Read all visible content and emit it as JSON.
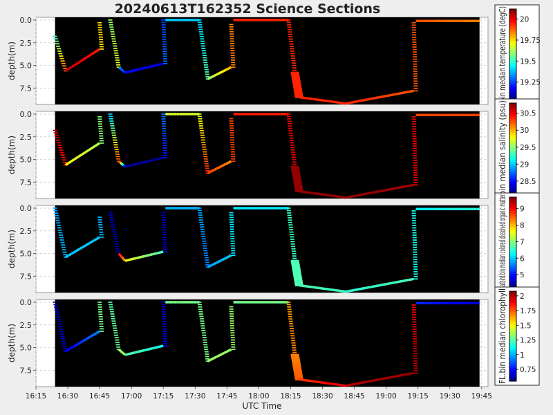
{
  "title": "20240613T162352 Science Sections",
  "xlabel": "UTC Time",
  "chart_data": [
    {
      "type": "heatmap",
      "ylabel": "depth(m)",
      "colorbar_label": "bin median temperature (degC)",
      "colorbar_ticks": [
        19.25,
        19.5,
        19.75,
        20.0
      ],
      "colorbar_range": [
        19.05,
        20.12
      ],
      "ylim": [
        9.3,
        -0.3
      ],
      "yticks": [
        0.0,
        2.5,
        5.0,
        7.5
      ],
      "xlim": [
        "16:15",
        "19:48"
      ],
      "xticks": [
        "16:15",
        "16:30",
        "16:45",
        "17:00",
        "17:15",
        "17:30",
        "17:45",
        "18:00",
        "18:15",
        "18:30",
        "18:45",
        "19:00",
        "19:15",
        "19:30",
        "19:45"
      ],
      "data_window": [
        "16:24",
        "19:44"
      ],
      "profiles": [
        {
          "t0": "16:24",
          "t1": "16:29",
          "d0": 1.8,
          "d1": 5.6,
          "v0": 19.5,
          "v1": 19.9,
          "style": "dash"
        },
        {
          "t0": "16:29",
          "t1": "16:45",
          "d0": 5.6,
          "d1": 3.2,
          "v0": 20.05,
          "v1": 19.95,
          "style": "solid"
        },
        {
          "t0": "16:45",
          "t1": "16:46",
          "d0": 0.3,
          "d1": 3.2,
          "v0": 19.75,
          "v1": 19.75,
          "style": "dash"
        },
        {
          "t0": "16:50",
          "t1": "16:54",
          "d0": 0.0,
          "d1": 5.2,
          "v0": 19.6,
          "v1": 19.7,
          "style": "dash"
        },
        {
          "t0": "16:54",
          "t1": "16:57",
          "d0": 5.2,
          "d1": 5.8,
          "v0": 19.35,
          "v1": 19.2,
          "style": "solid"
        },
        {
          "t0": "16:57",
          "t1": "17:15",
          "d0": 5.8,
          "d1": 4.8,
          "v0": 19.2,
          "v1": 19.15,
          "style": "solid"
        },
        {
          "t0": "17:15",
          "t1": "17:16",
          "d0": 0.0,
          "d1": 4.8,
          "v0": 19.25,
          "v1": 19.3,
          "style": "dash"
        },
        {
          "t0": "17:16",
          "t1": "17:32",
          "d0": 0.0,
          "d1": 0.0,
          "v0": 19.4,
          "v1": 19.4,
          "style": "solid"
        },
        {
          "t0": "17:32",
          "t1": "17:36",
          "d0": 0.0,
          "d1": 6.5,
          "v0": 19.4,
          "v1": 19.55,
          "style": "dash"
        },
        {
          "t0": "17:36",
          "t1": "17:47",
          "d0": 6.5,
          "d1": 5.2,
          "v0": 19.6,
          "v1": 19.8,
          "style": "solid"
        },
        {
          "t0": "17:47",
          "t1": "17:48",
          "d0": 0.5,
          "d1": 5.2,
          "v0": 19.85,
          "v1": 19.85,
          "style": "dash"
        },
        {
          "t0": "17:48",
          "t1": "18:14",
          "d0": 0.0,
          "d1": 0.0,
          "v0": 19.95,
          "v1": 19.95,
          "style": "solid"
        },
        {
          "t0": "18:14",
          "t1": "18:17",
          "d0": 0.0,
          "d1": 5.8,
          "v0": 19.95,
          "v1": 19.95,
          "style": "dash"
        },
        {
          "t0": "18:17",
          "t1": "18:19",
          "d0": 5.8,
          "d1": 8.5,
          "v0": 19.95,
          "v1": 19.95,
          "style": "wide"
        },
        {
          "t0": "18:19",
          "t1": "18:41",
          "d0": 8.5,
          "d1": 9.2,
          "v0": 19.95,
          "v1": 19.95,
          "style": "solid"
        },
        {
          "t0": "18:41",
          "t1": "19:13",
          "d0": 9.2,
          "d1": 7.8,
          "v0": 19.95,
          "v1": 19.9,
          "style": "solid"
        },
        {
          "t0": "19:13",
          "t1": "19:14",
          "d0": 0.3,
          "d1": 7.8,
          "v0": 19.9,
          "v1": 19.9,
          "style": "dash"
        },
        {
          "t0": "19:14",
          "t1": "19:44",
          "d0": 0.1,
          "d1": 0.1,
          "v0": 19.9,
          "v1": 19.85,
          "style": "solid"
        }
      ]
    },
    {
      "type": "heatmap",
      "ylabel": "depth(m)",
      "colorbar_label": "bin median salinity (psu)",
      "colorbar_ticks": [
        28.5,
        29.0,
        29.5,
        30.0,
        30.5
      ],
      "colorbar_range": [
        28.15,
        30.8
      ],
      "ylim": [
        9.3,
        -0.3
      ],
      "yticks": [
        0.0,
        2.5,
        5.0,
        7.5
      ],
      "xlim": [
        "16:15",
        "19:48"
      ],
      "xticks": [
        "16:15",
        "16:30",
        "16:45",
        "17:00",
        "17:15",
        "17:30",
        "17:45",
        "18:00",
        "18:15",
        "18:30",
        "18:45",
        "19:00",
        "19:15",
        "19:30",
        "19:45"
      ],
      "data_window": [
        "16:24",
        "19:44"
      ],
      "profiles": [
        {
          "t0": "16:24",
          "t1": "16:29",
          "d0": 1.8,
          "d1": 5.6,
          "v0": 30.6,
          "v1": 30.4,
          "style": "dash"
        },
        {
          "t0": "16:29",
          "t1": "16:45",
          "d0": 5.6,
          "d1": 3.2,
          "v0": 29.8,
          "v1": 29.6,
          "style": "solid"
        },
        {
          "t0": "16:45",
          "t1": "16:46",
          "d0": 0.3,
          "d1": 3.2,
          "v0": 29.5,
          "v1": 29.5,
          "style": "dash"
        },
        {
          "t0": "16:50",
          "t1": "16:54",
          "d0": 0.0,
          "d1": 5.2,
          "v0": 29.0,
          "v1": 30.3,
          "style": "dash"
        },
        {
          "t0": "16:54",
          "t1": "16:57",
          "d0": 5.2,
          "d1": 5.8,
          "v0": 30.5,
          "v1": 28.3,
          "style": "solid"
        },
        {
          "t0": "16:57",
          "t1": "17:15",
          "d0": 5.8,
          "d1": 4.8,
          "v0": 28.25,
          "v1": 28.2,
          "style": "solid"
        },
        {
          "t0": "17:15",
          "t1": "17:16",
          "d0": 0.0,
          "d1": 4.8,
          "v0": 28.8,
          "v1": 28.5,
          "style": "dash"
        },
        {
          "t0": "17:16",
          "t1": "17:32",
          "d0": 0.0,
          "d1": 0.0,
          "v0": 29.7,
          "v1": 29.7,
          "style": "solid"
        },
        {
          "t0": "17:32",
          "t1": "17:36",
          "d0": 0.0,
          "d1": 6.5,
          "v0": 29.7,
          "v1": 30.4,
          "style": "dash"
        },
        {
          "t0": "17:36",
          "t1": "17:47",
          "d0": 6.5,
          "d1": 5.2,
          "v0": 30.3,
          "v1": 30.1,
          "style": "solid"
        },
        {
          "t0": "17:47",
          "t1": "17:48",
          "d0": 0.5,
          "d1": 5.2,
          "v0": 30.3,
          "v1": 30.3,
          "style": "dash"
        },
        {
          "t0": "17:48",
          "t1": "18:14",
          "d0": 0.0,
          "d1": 0.0,
          "v0": 30.4,
          "v1": 30.4,
          "style": "solid"
        },
        {
          "t0": "18:14",
          "t1": "18:17",
          "d0": 0.0,
          "d1": 5.8,
          "v0": 30.5,
          "v1": 30.55,
          "style": "dash"
        },
        {
          "t0": "18:17",
          "t1": "18:19",
          "d0": 5.8,
          "d1": 8.5,
          "v0": 30.75,
          "v1": 30.75,
          "style": "wide"
        },
        {
          "t0": "18:19",
          "t1": "18:41",
          "d0": 8.5,
          "d1": 9.2,
          "v0": 30.75,
          "v1": 30.75,
          "style": "solid"
        },
        {
          "t0": "18:41",
          "t1": "19:13",
          "d0": 9.2,
          "d1": 7.8,
          "v0": 30.75,
          "v1": 30.7,
          "style": "solid"
        },
        {
          "t0": "19:13",
          "t1": "19:14",
          "d0": 0.3,
          "d1": 7.8,
          "v0": 30.5,
          "v1": 30.5,
          "style": "dash"
        },
        {
          "t0": "19:14",
          "t1": "19:44",
          "d0": 0.1,
          "d1": 0.1,
          "v0": 30.3,
          "v1": 30.3,
          "style": "solid"
        }
      ]
    },
    {
      "type": "heatmap",
      "ylabel": "depth(m)",
      "colorbar_label": "matbird.bin median colored dissolved organic matter",
      "colorbar_ticks": [
        5,
        6,
        7,
        8,
        9
      ],
      "colorbar_range": [
        4.25,
        9.7
      ],
      "ylim": [
        9.3,
        -0.3
      ],
      "yticks": [
        0.0,
        2.5,
        5.0,
        7.5
      ],
      "xlim": [
        "16:15",
        "19:48"
      ],
      "xticks": [
        "16:15",
        "16:30",
        "16:45",
        "17:00",
        "17:15",
        "17:30",
        "17:45",
        "18:00",
        "18:15",
        "18:30",
        "18:45",
        "19:00",
        "19:15",
        "19:30",
        "19:45"
      ],
      "data_window": [
        "16:24",
        "19:44"
      ],
      "profiles": [
        {
          "t0": "16:24",
          "t1": "16:29",
          "d0": 0.0,
          "d1": 5.4,
          "v0": 5.8,
          "v1": 5.9,
          "style": "dash"
        },
        {
          "t0": "16:29",
          "t1": "16:45",
          "d0": 5.4,
          "d1": 3.2,
          "v0": 6.0,
          "v1": 6.0,
          "style": "solid"
        },
        {
          "t0": "16:45",
          "t1": "16:46",
          "d0": 1.0,
          "d1": 3.2,
          "v0": 5.9,
          "v1": 5.9,
          "style": "dash"
        },
        {
          "t0": "16:50",
          "t1": "16:54",
          "d0": 0.5,
          "d1": 5.0,
          "v0": 4.6,
          "v1": 4.4,
          "style": "dash"
        },
        {
          "t0": "16:54",
          "t1": "16:57",
          "d0": 5.0,
          "d1": 5.8,
          "v0": 9.0,
          "v1": 8.2,
          "style": "solid"
        },
        {
          "t0": "16:57",
          "t1": "17:15",
          "d0": 5.8,
          "d1": 4.8,
          "v0": 7.6,
          "v1": 6.6,
          "style": "solid"
        },
        {
          "t0": "17:15",
          "t1": "17:16",
          "d0": 0.5,
          "d1": 4.8,
          "v0": 4.5,
          "v1": 4.6,
          "style": "dash"
        },
        {
          "t0": "17:16",
          "t1": "17:32",
          "d0": 0.0,
          "d1": 0.0,
          "v0": 5.9,
          "v1": 5.9,
          "style": "solid"
        },
        {
          "t0": "17:32",
          "t1": "17:36",
          "d0": 0.0,
          "d1": 6.5,
          "v0": 5.8,
          "v1": 5.6,
          "style": "dash"
        },
        {
          "t0": "17:36",
          "t1": "17:47",
          "d0": 6.5,
          "d1": 5.2,
          "v0": 5.8,
          "v1": 6.0,
          "style": "solid"
        },
        {
          "t0": "17:47",
          "t1": "17:48",
          "d0": 0.5,
          "d1": 5.2,
          "v0": 6.2,
          "v1": 6.2,
          "style": "dash"
        },
        {
          "t0": "17:48",
          "t1": "18:14",
          "d0": 0.0,
          "d1": 0.0,
          "v0": 6.2,
          "v1": 6.2,
          "style": "solid"
        },
        {
          "t0": "18:14",
          "t1": "18:17",
          "d0": 0.0,
          "d1": 5.8,
          "v0": 6.6,
          "v1": 6.6,
          "style": "dash"
        },
        {
          "t0": "18:17",
          "t1": "18:19",
          "d0": 5.8,
          "d1": 8.5,
          "v0": 6.7,
          "v1": 6.7,
          "style": "wide"
        },
        {
          "t0": "18:19",
          "t1": "18:41",
          "d0": 8.5,
          "d1": 9.2,
          "v0": 6.7,
          "v1": 6.6,
          "style": "solid"
        },
        {
          "t0": "18:41",
          "t1": "19:13",
          "d0": 9.2,
          "d1": 7.8,
          "v0": 6.5,
          "v1": 6.7,
          "style": "solid"
        },
        {
          "t0": "19:13",
          "t1": "19:14",
          "d0": 0.3,
          "d1": 7.8,
          "v0": 6.4,
          "v1": 6.4,
          "style": "dash"
        },
        {
          "t0": "19:14",
          "t1": "19:44",
          "d0": 0.1,
          "d1": 0.1,
          "v0": 6.3,
          "v1": 6.5,
          "style": "solid"
        }
      ]
    },
    {
      "type": "heatmap",
      "ylabel": "depth(m)",
      "colorbar_label": "FL.bin median chlorophyll",
      "colorbar_ticks": [
        0.75,
        1.0,
        1.25,
        1.5,
        1.75,
        2.0
      ],
      "colorbar_range": [
        0.55,
        2.08
      ],
      "ylim": [
        9.3,
        -0.3
      ],
      "yticks": [
        0.0,
        2.5,
        5.0,
        7.5
      ],
      "xlim": [
        "16:15",
        "19:48"
      ],
      "xticks": [
        "16:15",
        "16:30",
        "16:45",
        "17:00",
        "17:15",
        "17:30",
        "17:45",
        "18:00",
        "18:15",
        "18:30",
        "18:45",
        "19:00",
        "19:15",
        "19:30",
        "19:45"
      ],
      "data_window": [
        "16:24",
        "19:44"
      ],
      "profiles": [
        {
          "t0": "16:24",
          "t1": "16:29",
          "d0": 0.0,
          "d1": 5.4,
          "v0": 0.6,
          "v1": 0.7,
          "style": "dash"
        },
        {
          "t0": "16:29",
          "t1": "16:45",
          "d0": 5.4,
          "d1": 3.2,
          "v0": 0.7,
          "v1": 0.95,
          "style": "solid"
        },
        {
          "t0": "16:45",
          "t1": "16:46",
          "d0": 0.0,
          "d1": 3.2,
          "v0": 1.3,
          "v1": 1.3,
          "style": "dash"
        },
        {
          "t0": "16:50",
          "t1": "16:54",
          "d0": 0.0,
          "d1": 5.2,
          "v0": 1.25,
          "v1": 1.3,
          "style": "dash"
        },
        {
          "t0": "16:54",
          "t1": "16:57",
          "d0": 5.2,
          "d1": 5.8,
          "v0": 1.35,
          "v1": 1.35,
          "style": "solid"
        },
        {
          "t0": "16:57",
          "t1": "17:15",
          "d0": 5.8,
          "d1": 4.8,
          "v0": 1.25,
          "v1": 1.15,
          "style": "solid"
        },
        {
          "t0": "17:15",
          "t1": "17:16",
          "d0": 0.0,
          "d1": 4.8,
          "v0": 0.65,
          "v1": 0.7,
          "style": "dash"
        },
        {
          "t0": "17:16",
          "t1": "17:32",
          "d0": 0.0,
          "d1": 0.0,
          "v0": 1.3,
          "v1": 1.3,
          "style": "solid"
        },
        {
          "t0": "17:32",
          "t1": "17:36",
          "d0": 0.0,
          "d1": 6.5,
          "v0": 1.3,
          "v1": 1.3,
          "style": "dash"
        },
        {
          "t0": "17:36",
          "t1": "17:47",
          "d0": 6.5,
          "d1": 5.2,
          "v0": 1.35,
          "v1": 1.35,
          "style": "solid"
        },
        {
          "t0": "17:47",
          "t1": "17:48",
          "d0": 0.5,
          "d1": 5.2,
          "v0": 1.35,
          "v1": 1.35,
          "style": "dash"
        },
        {
          "t0": "17:48",
          "t1": "18:14",
          "d0": 0.0,
          "d1": 0.0,
          "v0": 1.3,
          "v1": 1.3,
          "style": "solid"
        },
        {
          "t0": "18:14",
          "t1": "18:17",
          "d0": 0.0,
          "d1": 5.8,
          "v0": 1.65,
          "v1": 1.7,
          "style": "dash"
        },
        {
          "t0": "18:17",
          "t1": "18:19",
          "d0": 5.8,
          "d1": 8.5,
          "v0": 1.7,
          "v1": 1.75,
          "style": "wide"
        },
        {
          "t0": "18:19",
          "t1": "18:41",
          "d0": 8.5,
          "d1": 9.2,
          "v0": 1.8,
          "v1": 1.95,
          "style": "solid"
        },
        {
          "t0": "18:41",
          "t1": "19:13",
          "d0": 9.2,
          "d1": 7.8,
          "v0": 2.0,
          "v1": 2.05,
          "style": "solid"
        },
        {
          "t0": "19:13",
          "t1": "19:14",
          "d0": 0.3,
          "d1": 7.8,
          "v0": 1.9,
          "v1": 2.0,
          "style": "dash"
        },
        {
          "t0": "19:14",
          "t1": "19:44",
          "d0": 0.1,
          "d1": 0.1,
          "v0": 0.8,
          "v1": 0.7,
          "style": "solid"
        }
      ]
    }
  ]
}
